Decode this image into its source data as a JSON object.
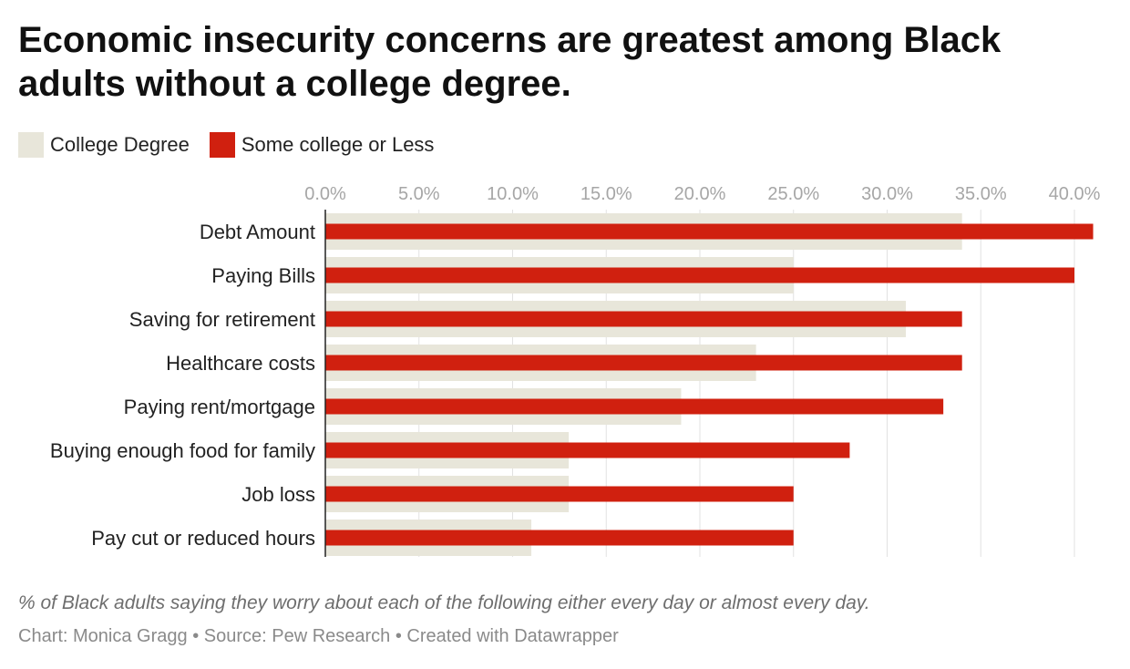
{
  "chart_data": {
    "type": "bar",
    "orientation": "horizontal",
    "title": "Economic insecurity concerns are greatest among Black adults without a college degree.",
    "subtitle": "% of Black adults saying they worry about each of the following either every day or almost every day.",
    "credits": "Chart: Monica Gragg • Source: Pew Research • Created with Datawrapper",
    "categories": [
      "Debt Amount",
      "Paying Bills",
      "Saving for retirement",
      "Healthcare costs",
      "Paying rent/mortgage",
      "Buying enough food for family",
      "Job loss",
      "Pay cut or reduced hours"
    ],
    "series": [
      {
        "name": "College Degree",
        "color": "#e8e6da",
        "values": [
          34,
          25,
          31,
          23,
          19,
          13,
          13,
          11
        ]
      },
      {
        "name": "Some college or Less",
        "color": "#d0200f",
        "values": [
          41,
          40,
          34,
          34,
          33,
          28,
          25,
          25
        ]
      }
    ],
    "x_ticks": [
      "0.0%",
      "5.0%",
      "10.0%",
      "15.0%",
      "20.0%",
      "25.0%",
      "30.0%",
      "35.0%",
      "40.0%"
    ],
    "x_tick_values": [
      0,
      5,
      10,
      15,
      20,
      25,
      30,
      35,
      40
    ],
    "xlim": [
      0,
      41
    ],
    "grid": true,
    "legend_position": "top-left"
  }
}
